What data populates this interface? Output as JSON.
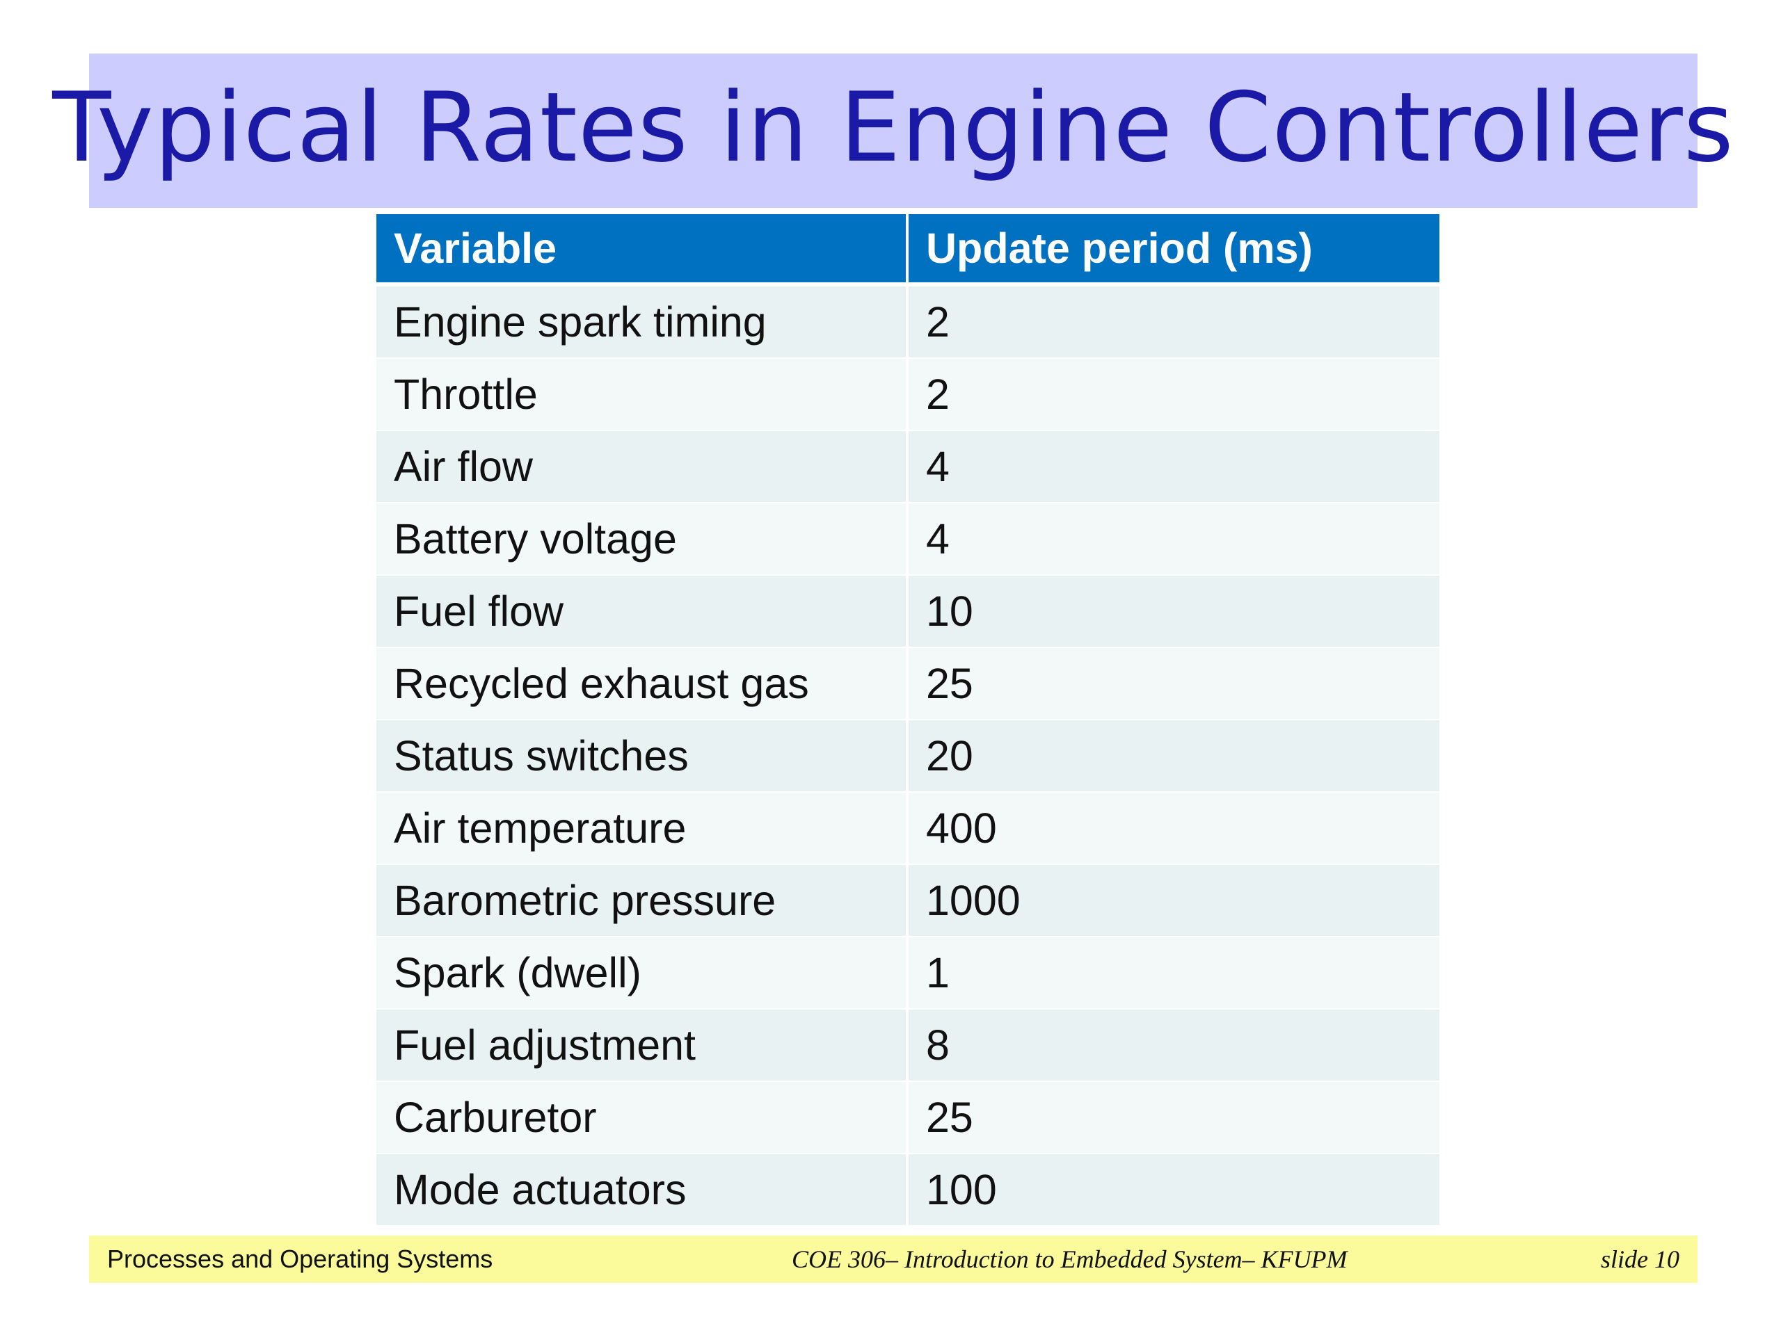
{
  "slide": {
    "title": "Typical Rates in Engine Controllers"
  },
  "table": {
    "headers": [
      "Variable",
      "Update period (ms)"
    ],
    "rows": [
      [
        "Engine spark timing",
        "2"
      ],
      [
        "Throttle",
        "2"
      ],
      [
        "Air flow",
        "4"
      ],
      [
        "Battery voltage",
        "4"
      ],
      [
        "Fuel flow",
        "10"
      ],
      [
        "Recycled exhaust gas",
        "25"
      ],
      [
        "Status switches",
        "20"
      ],
      [
        "Air temperature",
        "400"
      ],
      [
        "Barometric pressure",
        "1000"
      ],
      [
        "Spark (dwell)",
        "1"
      ],
      [
        "Fuel adjustment",
        "8"
      ],
      [
        "Carburetor",
        "25"
      ],
      [
        "Mode actuators",
        "100"
      ]
    ]
  },
  "footer": {
    "left": "Processes and Operating Systems",
    "center": "COE 306– Introduction to Embedded System– KFUPM",
    "right": "slide 10"
  },
  "colors": {
    "title_background": "#ccccff",
    "title_text": "#1a1aa6",
    "table_header": "#0070c0",
    "row_odd": "#e8f2f2",
    "row_even": "#f3f8f8",
    "footer_background": "#fbfb9c"
  }
}
